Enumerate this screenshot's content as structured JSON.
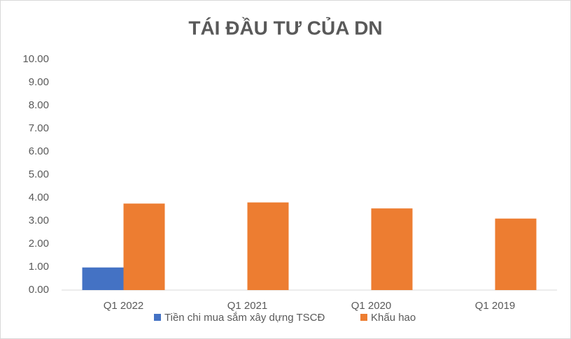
{
  "chart_data": {
    "type": "bar",
    "title": "TÁI ĐẦU TƯ CỦA DN",
    "categories": [
      "Q1 2022",
      "Q1 2021",
      "Q1 2020",
      "Q1 2019"
    ],
    "series": [
      {
        "name": "Tiền chi mua sắm xây dựng TSCĐ",
        "color": "#4472c4",
        "values": [
          0.98,
          0,
          0,
          0
        ]
      },
      {
        "name": "Khấu hao",
        "color": "#ed7d31",
        "values": [
          3.75,
          3.8,
          3.54,
          3.1
        ]
      }
    ],
    "ylim": [
      0,
      10
    ],
    "yticks": [
      {
        "value": 0,
        "label": "0.00"
      },
      {
        "value": 1,
        "label": "1.00"
      },
      {
        "value": 2,
        "label": "2.00"
      },
      {
        "value": 3,
        "label": "3.00"
      },
      {
        "value": 4,
        "label": "4.00"
      },
      {
        "value": 5,
        "label": "5.00"
      },
      {
        "value": 6,
        "label": "6.00"
      },
      {
        "value": 7,
        "label": "7.00"
      },
      {
        "value": 8,
        "label": "8.00"
      },
      {
        "value": 9,
        "label": "9.00"
      },
      {
        "value": 10,
        "label": "10.00"
      }
    ],
    "grid": false,
    "legend": "bottom"
  }
}
